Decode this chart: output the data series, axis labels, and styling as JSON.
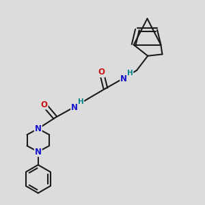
{
  "bg_color": "#dcdcdc",
  "bond_color": "#1a1a1a",
  "bond_width": 1.5,
  "N_color": "#1414cc",
  "O_color": "#cc1414",
  "H_color": "#008888",
  "font_size": 8.5,
  "fig_size": [
    3.0,
    3.0
  ],
  "dpi": 100,
  "xlim": [
    0,
    10
  ],
  "ylim": [
    0,
    10
  ]
}
